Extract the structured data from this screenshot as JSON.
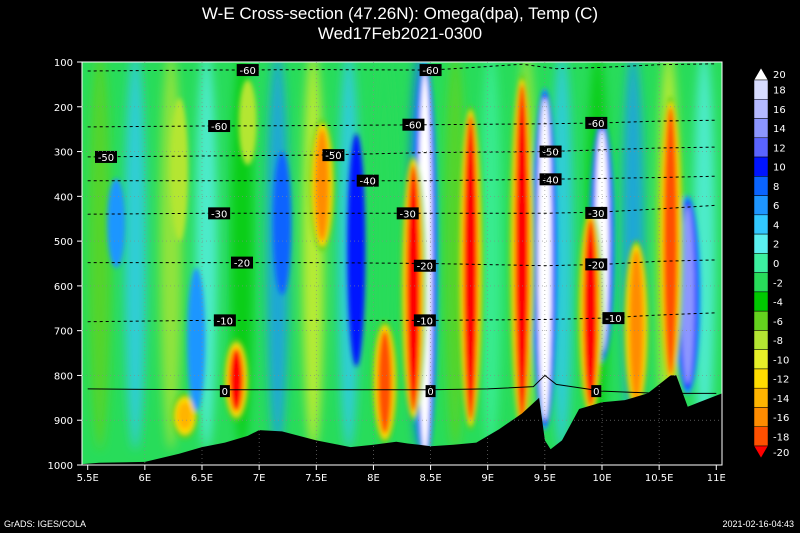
{
  "title": "W-E Cross-section (47.26N): Omega(dpa), Temp (C)",
  "subtitle": "Wed17Feb2021-0300",
  "footer_left": "GrADS: IGES/COLA",
  "footer_right": "2021-02-16-04:43",
  "chart_data": {
    "type": "heatmap",
    "title": "W-E Cross-section (47.26N): Omega(dpa), Temp (C)",
    "subtitle": "Wed17Feb2021-0300",
    "x_ticks": [
      "5.5E",
      "6E",
      "6.5E",
      "7E",
      "7.5E",
      "8E",
      "8.5E",
      "9E",
      "9.5E",
      "10E",
      "10.5E",
      "11E"
    ],
    "x_values": [
      5.5,
      6,
      6.5,
      7,
      7.5,
      8,
      8.5,
      9,
      9.5,
      10,
      10.5,
      11
    ],
    "xlim": [
      5.45,
      11.05
    ],
    "y_ticks": [
      "100",
      "200",
      "300",
      "400",
      "500",
      "600",
      "700",
      "800",
      "900",
      "1000"
    ],
    "y_values": [
      100,
      200,
      300,
      400,
      500,
      600,
      700,
      800,
      900,
      1000
    ],
    "ylim": [
      100,
      1000
    ],
    "colorbar": {
      "labels": [
        "20",
        "18",
        "16",
        "14",
        "12",
        "10",
        "8",
        "6",
        "4",
        "2",
        "0",
        "-2",
        "-4",
        "-6",
        "-8",
        "-10",
        "-12",
        "-14",
        "-16",
        "-18",
        "-20"
      ],
      "colors": [
        "#ffffff",
        "#d7dcff",
        "#b4b9ff",
        "#8c96ff",
        "#5a64ff",
        "#0014ff",
        "#0a64ff",
        "#1e96ff",
        "#32c8ff",
        "#5af0f0",
        "#3cf0a0",
        "#28dc5a",
        "#00c800",
        "#64d21e",
        "#b4e632",
        "#e6f028",
        "#ffdc00",
        "#ffb400",
        "#ff8c00",
        "#ff5000",
        "#ff0000"
      ]
    },
    "temperature_contours": [
      {
        "label": "0",
        "values": [
          [
            5.5,
            830
          ],
          [
            6.5,
            832
          ],
          [
            7.5,
            832
          ],
          [
            8.5,
            832
          ],
          [
            9,
            830
          ],
          [
            9.4,
            825
          ],
          [
            9.5,
            800
          ],
          [
            9.6,
            820
          ],
          [
            10,
            835
          ],
          [
            10.5,
            840
          ],
          [
            11,
            840
          ]
        ],
        "label_positions": [
          [
            6.7,
            835
          ],
          [
            8.5,
            835
          ],
          [
            9.95,
            835
          ]
        ]
      },
      {
        "label": "-10",
        "values": [
          [
            5.5,
            680
          ],
          [
            6.5,
            677
          ],
          [
            7.5,
            677
          ],
          [
            8.5,
            677
          ],
          [
            9.5,
            675
          ],
          [
            10,
            672
          ],
          [
            10.5,
            665
          ],
          [
            11,
            660
          ]
        ],
        "label_positions": [
          [
            6.7,
            677
          ],
          [
            8.45,
            677
          ],
          [
            10.1,
            672
          ]
        ]
      },
      {
        "label": "-20",
        "values": [
          [
            5.5,
            548
          ],
          [
            6.5,
            548
          ],
          [
            7.5,
            548
          ],
          [
            8.5,
            550
          ],
          [
            9.5,
            555
          ],
          [
            10,
            552
          ],
          [
            10.5,
            545
          ],
          [
            11,
            542
          ]
        ],
        "label_positions": [
          [
            6.85,
            548
          ],
          [
            8.45,
            555
          ],
          [
            9.95,
            552
          ]
        ]
      },
      {
        "label": "-30",
        "values": [
          [
            5.5,
            440
          ],
          [
            6.5,
            438
          ],
          [
            7.5,
            438
          ],
          [
            8.5,
            438
          ],
          [
            9.5,
            438
          ],
          [
            10,
            435
          ],
          [
            10.5,
            428
          ],
          [
            11,
            420
          ]
        ],
        "label_positions": [
          [
            6.65,
            438
          ],
          [
            8.3,
            438
          ],
          [
            9.95,
            437
          ]
        ]
      },
      {
        "label": "-40",
        "values": [
          [
            5.5,
            365
          ],
          [
            6.5,
            365
          ],
          [
            7.5,
            365
          ],
          [
            8.5,
            365
          ],
          [
            9.5,
            362
          ],
          [
            10,
            360
          ],
          [
            10.5,
            358
          ],
          [
            11,
            355
          ]
        ],
        "label_positions": [
          [
            7.95,
            365
          ],
          [
            9.55,
            362
          ]
        ]
      },
      {
        "label": "-50",
        "values": [
          [
            5.5,
            312
          ],
          [
            6.5,
            310
          ],
          [
            7.5,
            308
          ],
          [
            8.5,
            302
          ],
          [
            9.5,
            300
          ],
          [
            10,
            296
          ],
          [
            10.5,
            292
          ],
          [
            11,
            290
          ]
        ],
        "label_positions": [
          [
            5.66,
            312
          ],
          [
            7.65,
            308
          ],
          [
            9.55,
            300
          ]
        ]
      },
      {
        "label": "-60",
        "values": [
          [
            5.5,
            245
          ],
          [
            6.5,
            243
          ],
          [
            7.5,
            242
          ],
          [
            8.5,
            240
          ],
          [
            9.5,
            238
          ],
          [
            10,
            236
          ],
          [
            10.5,
            232
          ],
          [
            11,
            230
          ]
        ],
        "label_positions": [
          [
            6.65,
            243
          ],
          [
            8.35,
            240
          ],
          [
            9.95,
            236
          ]
        ]
      },
      {
        "label": "-60",
        "values": [
          [
            5.5,
            120
          ],
          [
            6.5,
            118
          ],
          [
            7.5,
            117
          ],
          [
            8.5,
            118
          ],
          [
            9.0,
            110
          ],
          [
            9.3,
            105
          ],
          [
            9.6,
            115
          ],
          [
            10,
            112
          ],
          [
            10.5,
            106
          ],
          [
            11,
            104
          ]
        ],
        "label_positions": [
          [
            6.9,
            118
          ],
          [
            8.5,
            118
          ]
        ]
      }
    ],
    "terrain_surface_pressure": [
      [
        5.45,
        998
      ],
      [
        5.6,
        995
      ],
      [
        6,
        993
      ],
      [
        6.3,
        975
      ],
      [
        6.5,
        960
      ],
      [
        6.7,
        950
      ],
      [
        6.9,
        935
      ],
      [
        7.0,
        922
      ],
      [
        7.2,
        925
      ],
      [
        7.5,
        945
      ],
      [
        7.8,
        960
      ],
      [
        8.0,
        955
      ],
      [
        8.2,
        948
      ],
      [
        8.3,
        952
      ],
      [
        8.4,
        955
      ],
      [
        8.5,
        958
      ],
      [
        8.7,
        955
      ],
      [
        8.9,
        950
      ],
      [
        9.1,
        920
      ],
      [
        9.3,
        885
      ],
      [
        9.45,
        850
      ],
      [
        9.5,
        945
      ],
      [
        9.55,
        965
      ],
      [
        9.65,
        945
      ],
      [
        9.8,
        875
      ],
      [
        10.0,
        860
      ],
      [
        10.2,
        855
      ],
      [
        10.4,
        840
      ],
      [
        10.6,
        800
      ],
      [
        10.65,
        800
      ],
      [
        10.75,
        870
      ],
      [
        10.85,
        860
      ],
      [
        11.05,
        840
      ]
    ],
    "omega_features": [
      {
        "x": 8.45,
        "ptop": 120,
        "pbot": 980,
        "value": 20
      },
      {
        "x": 9.5,
        "ptop": 180,
        "pbot": 900,
        "value": 20
      },
      {
        "x": 10.0,
        "ptop": 250,
        "pbot": 750,
        "value": 20
      },
      {
        "x": 10.75,
        "ptop": 420,
        "pbot": 820,
        "value": 14
      },
      {
        "x": 8.85,
        "ptop": 220,
        "pbot": 900,
        "value": -20
      },
      {
        "x": 9.3,
        "ptop": 150,
        "pbot": 900,
        "value": -20
      },
      {
        "x": 9.9,
        "ptop": 450,
        "pbot": 870,
        "value": -20
      },
      {
        "x": 10.3,
        "ptop": 520,
        "pbot": 860,
        "value": -16
      },
      {
        "x": 10.6,
        "ptop": 200,
        "pbot": 800,
        "value": -18
      },
      {
        "x": 7.55,
        "ptop": 250,
        "pbot": 500,
        "value": -16
      },
      {
        "x": 8.35,
        "ptop": 330,
        "pbot": 880,
        "value": -20
      },
      {
        "x": 6.8,
        "ptop": 740,
        "pbot": 880,
        "value": -20
      },
      {
        "x": 6.35,
        "ptop": 860,
        "pbot": 920,
        "value": -14
      },
      {
        "x": 8.1,
        "ptop": 700,
        "pbot": 930,
        "value": -18
      },
      {
        "x": 6.3,
        "ptop": 180,
        "pbot": 500,
        "value": -8
      },
      {
        "x": 6.9,
        "ptop": 140,
        "pbot": 330,
        "value": -8
      },
      {
        "x": 5.75,
        "ptop": 360,
        "pbot": 560,
        "value": 6
      },
      {
        "x": 7.2,
        "ptop": 300,
        "pbot": 620,
        "value": 8
      },
      {
        "x": 7.85,
        "ptop": 260,
        "pbot": 780,
        "value": 10
      },
      {
        "x": 6.45,
        "ptop": 560,
        "pbot": 880,
        "value": 6
      }
    ]
  }
}
